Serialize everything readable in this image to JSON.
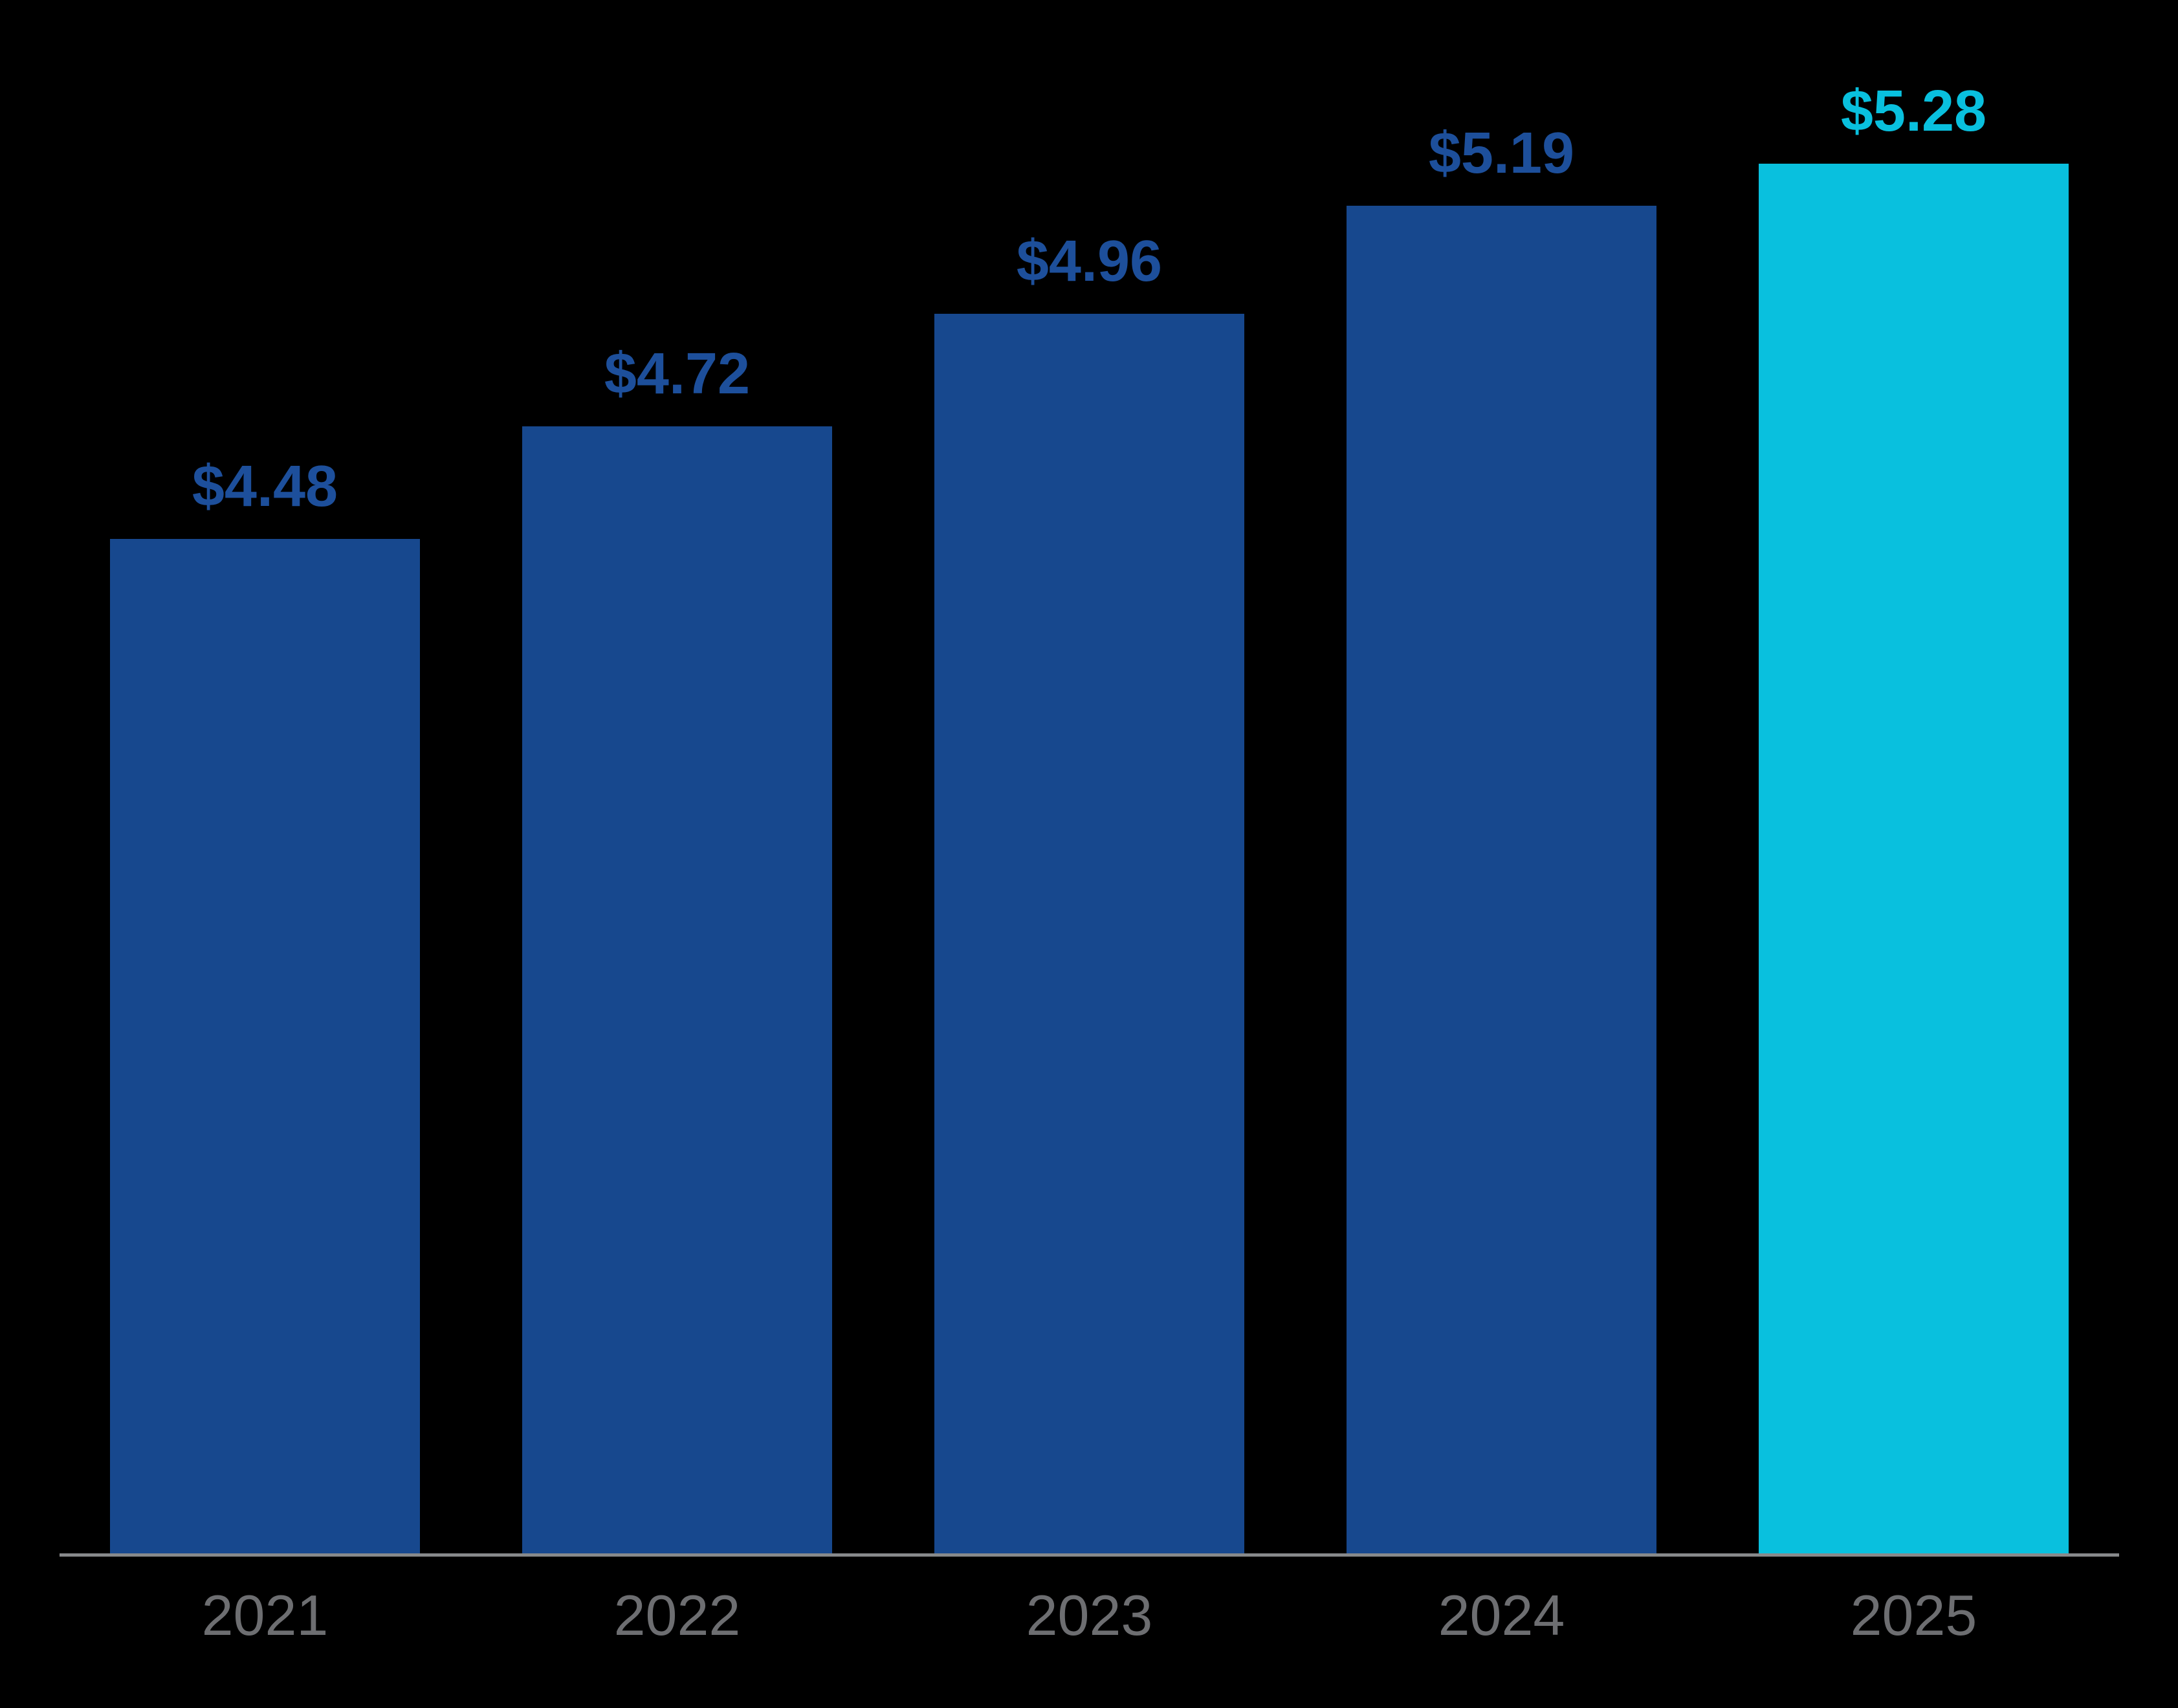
{
  "chart_data": {
    "type": "bar",
    "title": "",
    "xlabel": "",
    "ylabel": "",
    "categories": [
      "2021",
      "2022",
      "2023",
      "2024",
      "2025"
    ],
    "values": [
      4.48,
      4.72,
      4.96,
      5.19,
      5.28
    ],
    "value_labels": [
      "$4.48",
      "$4.72",
      "$4.96",
      "$5.19",
      "$5.28"
    ],
    "series_name": "",
    "grid": false,
    "legend": false,
    "highlighted_category": "2025",
    "colors": {
      "background": "#000000",
      "bar_default": "#17488E",
      "bar_highlight": "#09C0DE",
      "value_label_default": "#1D4F9B",
      "value_label_highlight": "#09C0DE",
      "tick_label": "#6D6E71",
      "axis_line": "#87898B"
    },
    "bar_colors": [
      "#17488E",
      "#17488E",
      "#17488E",
      "#17488E",
      "#09C0DE"
    ],
    "label_colors": [
      "#1D4F9B",
      "#1D4F9B",
      "#1D4F9B",
      "#1D4F9B",
      "#09C0DE"
    ]
  }
}
